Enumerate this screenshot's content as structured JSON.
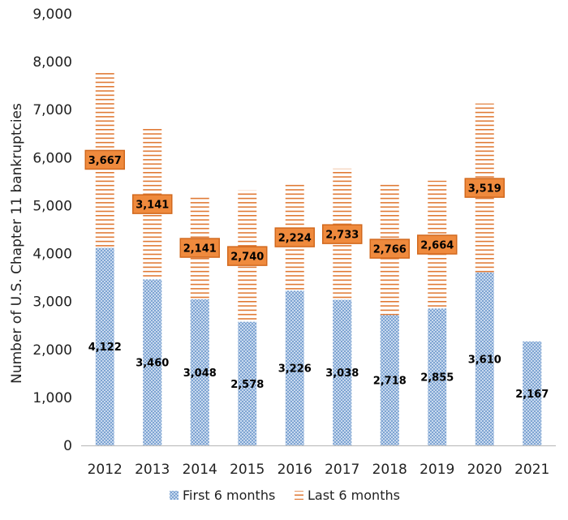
{
  "chart_data": {
    "type": "bar",
    "stacked": true,
    "ylabel": "Number of U.S. Chapter 11 bankruptcies",
    "xlabel": "",
    "ylim": [
      0,
      9000
    ],
    "yticks": [
      0,
      1000,
      2000,
      3000,
      4000,
      5000,
      6000,
      7000,
      8000,
      9000
    ],
    "ytick_labels": [
      "0",
      "1,000",
      "2,000",
      "3,000",
      "4,000",
      "5,000",
      "6,000",
      "7,000",
      "8,000",
      "9,000"
    ],
    "categories": [
      "2012",
      "2013",
      "2014",
      "2015",
      "2016",
      "2017",
      "2018",
      "2019",
      "2020",
      "2021"
    ],
    "series": [
      {
        "name": "First 6 months",
        "values": [
          4122,
          3460,
          3048,
          2578,
          3226,
          3038,
          2718,
          2855,
          3610,
          2167
        ],
        "labels": [
          "4,122",
          "3,460",
          "3,048",
          "2,578",
          "3,226",
          "3,038",
          "2,718",
          "2,855",
          "3,610",
          "2,167"
        ],
        "color": "#5b8fc9",
        "pattern": "dots"
      },
      {
        "name": "Last 6 months",
        "values": [
          3667,
          3141,
          2141,
          2740,
          2224,
          2733,
          2766,
          2664,
          3519,
          null
        ],
        "labels": [
          "3,667",
          "3,141",
          "2,141",
          "2,740",
          "2,224",
          "2,733",
          "2,766",
          "2,664",
          "3,519",
          ""
        ],
        "color": "#e8792f",
        "pattern": "horizontal-lines"
      }
    ],
    "legend_position": "bottom",
    "grid": false,
    "label_box_color": "#ef8a3d",
    "label_box_border": "#d2691e"
  }
}
